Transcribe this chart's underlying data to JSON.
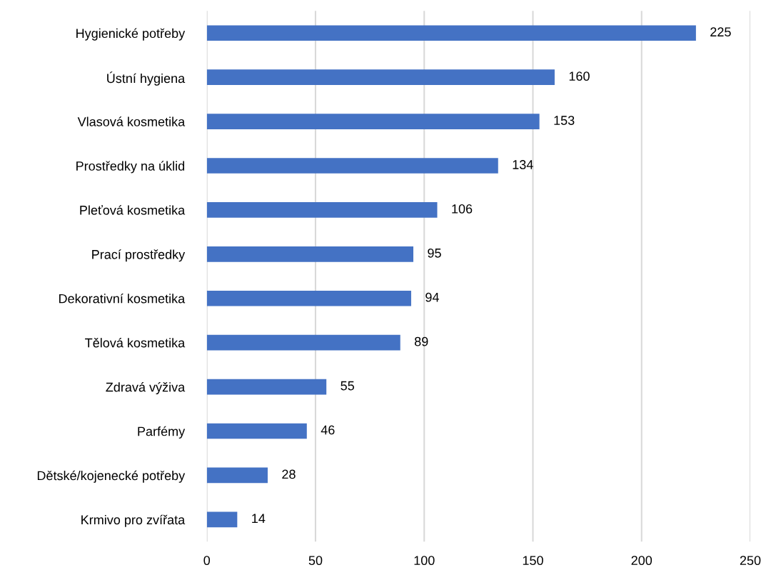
{
  "chart_data": {
    "type": "bar",
    "orientation": "horizontal",
    "categories": [
      "Hygienické potřeby",
      "Ústní hygiena",
      "Vlasová kosmetika",
      "Prostředky na úklid",
      "Pleťová kosmetika",
      "Prací prostředky",
      "Dekorativní kosmetika",
      "Tělová kosmetika",
      "Zdravá výživa",
      "Parfémy",
      "Dětské/kojenecké potřeby",
      "Krmivo pro zvířata"
    ],
    "values": [
      225,
      160,
      153,
      134,
      106,
      95,
      94,
      89,
      55,
      46,
      28,
      14
    ],
    "color": "#4472c4",
    "xlim": [
      0,
      250
    ],
    "xticks": [
      0,
      50,
      100,
      150,
      200,
      250
    ],
    "grid": "x",
    "data_labels": true
  }
}
